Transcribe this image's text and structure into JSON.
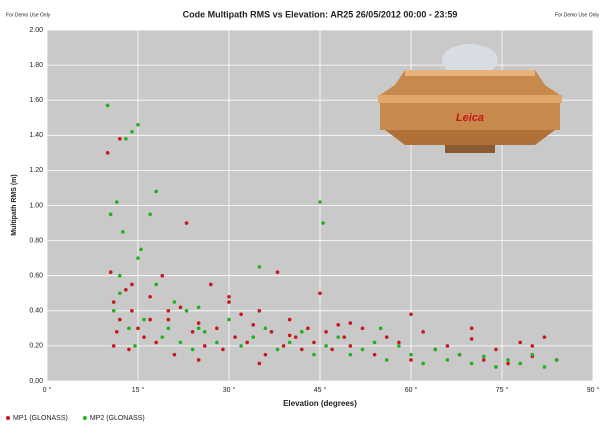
{
  "chart_data": {
    "type": "scatter",
    "title": "Code Multipath RMS vs Elevation: AR25 26/05/2012 00:00 - 23:59",
    "watermark_left": "For Demo Use Only",
    "watermark_right": "For Demo Use Only",
    "x_label": "Elevation (degrees)",
    "y_label": "Multipath RMS (m)",
    "antenna_label": "Leica",
    "xlim": [
      0,
      90
    ],
    "ylim": [
      0,
      2
    ],
    "xticks": [
      {
        "value": 0,
        "label": "0 °"
      },
      {
        "value": 15,
        "label": "15 °"
      },
      {
        "value": 30,
        "label": "30 °"
      },
      {
        "value": 45,
        "label": "45 °"
      },
      {
        "value": 60,
        "label": "60 °"
      },
      {
        "value": 75,
        "label": "75 °"
      },
      {
        "value": 90,
        "label": "90 °"
      }
    ],
    "yticks": [
      {
        "value": 0,
        "label": "0.00"
      },
      {
        "value": 0.2,
        "label": "0.20"
      },
      {
        "value": 0.4,
        "label": "0.40"
      },
      {
        "value": 0.6,
        "label": "0.60"
      },
      {
        "value": 0.8,
        "label": "0.80"
      },
      {
        "value": 1,
        "label": "1.00"
      },
      {
        "value": 1.2,
        "label": "1.20"
      },
      {
        "value": 1.4,
        "label": "1.40"
      },
      {
        "value": 1.6,
        "label": "1.60"
      },
      {
        "value": 1.8,
        "label": "1.80"
      },
      {
        "value": 2,
        "label": "2.00"
      }
    ],
    "grid": true,
    "legend": "bottom-left",
    "series": [
      {
        "name": "MP1 (GLONASS)",
        "color": "#c8171b",
        "x": [
          10,
          10.5,
          11,
          11.5,
          12,
          12,
          13,
          13.5,
          14,
          15,
          16,
          17,
          18,
          19,
          20,
          21,
          22,
          23,
          24,
          25,
          26,
          27,
          28,
          29,
          30,
          31,
          32,
          33,
          34,
          35,
          36,
          37,
          38,
          39,
          40,
          41,
          42,
          43,
          44,
          45,
          46,
          47,
          48,
          49,
          50,
          52,
          54,
          56,
          58,
          60,
          62,
          64,
          66,
          68,
          70,
          72,
          74,
          76,
          78,
          80,
          82,
          84,
          11,
          14,
          17,
          20,
          25,
          30,
          35,
          40,
          50,
          60,
          70,
          80
        ],
        "values": [
          1.3,
          0.62,
          0.45,
          0.28,
          1.38,
          0.35,
          0.52,
          0.18,
          0.4,
          0.3,
          0.25,
          0.48,
          0.22,
          0.6,
          0.35,
          0.15,
          0.42,
          0.9,
          0.28,
          0.33,
          0.2,
          0.55,
          0.3,
          0.18,
          0.45,
          0.25,
          0.38,
          0.22,
          0.32,
          0.4,
          0.15,
          0.28,
          0.62,
          0.2,
          0.35,
          0.25,
          0.18,
          0.3,
          0.22,
          0.5,
          0.28,
          0.18,
          0.32,
          0.25,
          0.2,
          0.3,
          0.15,
          0.25,
          0.22,
          0.12,
          0.28,
          0.18,
          0.2,
          0.15,
          0.3,
          0.12,
          0.18,
          0.1,
          0.22,
          0.14,
          0.25,
          0.12,
          0.2,
          0.55,
          0.35,
          0.4,
          0.12,
          0.48,
          0.1,
          0.26,
          0.33,
          0.38,
          0.24,
          0.2
        ]
      },
      {
        "name": "MP2 (GLONASS)",
        "color": "#22b022",
        "x": [
          10,
          10.5,
          11,
          11.5,
          12,
          12.5,
          13,
          13.5,
          14,
          14.5,
          15,
          15.5,
          16,
          17,
          18,
          19,
          20,
          21,
          22,
          23,
          24,
          25,
          26,
          28,
          30,
          32,
          34,
          36,
          38,
          40,
          42,
          44,
          45,
          45.5,
          46,
          48,
          50,
          52,
          54,
          56,
          58,
          60,
          62,
          64,
          66,
          68,
          70,
          72,
          74,
          76,
          78,
          80,
          82,
          84,
          12,
          15,
          18,
          25,
          35,
          55
        ],
        "values": [
          1.57,
          0.95,
          0.4,
          1.02,
          0.6,
          0.85,
          1.38,
          0.3,
          1.42,
          0.2,
          1.46,
          0.75,
          0.35,
          0.95,
          1.08,
          0.25,
          0.3,
          0.45,
          0.22,
          0.4,
          0.18,
          0.3,
          0.28,
          0.22,
          0.35,
          0.2,
          0.25,
          0.3,
          0.18,
          0.22,
          0.28,
          0.15,
          1.02,
          0.9,
          0.2,
          0.25,
          0.15,
          0.18,
          0.22,
          0.12,
          0.2,
          0.15,
          0.1,
          0.18,
          0.12,
          0.15,
          0.1,
          0.14,
          0.08,
          0.12,
          0.1,
          0.15,
          0.08,
          0.12,
          0.5,
          0.7,
          0.55,
          0.42,
          0.65,
          0.3
        ]
      }
    ]
  }
}
